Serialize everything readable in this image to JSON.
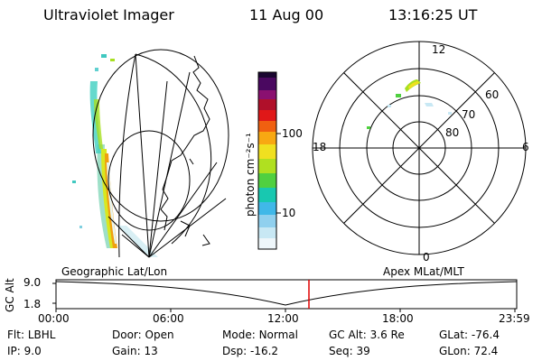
{
  "header": {
    "instrument": "Ultraviolet Imager",
    "date": "11 Aug 00",
    "time": "13:16:25 UT"
  },
  "colorbar": {
    "unit_label": "photon cm⁻²s⁻¹",
    "ticks": [
      "100",
      "10"
    ],
    "colors": [
      "#1a0630",
      "#3a0550",
      "#7a1070",
      "#a0103a",
      "#d8101e",
      "#f05a10",
      "#f8a012",
      "#f0e020",
      "#a8e020",
      "#40d040",
      "#18c8b0",
      "#40b8e8",
      "#a0d8f0",
      "#e8f4f8"
    ]
  },
  "geo_panel": {
    "label": "Geographic Lat/Lon"
  },
  "polar_panel": {
    "label": "Apex MLat/MLT",
    "mlt_labels": {
      "top": "12",
      "left": "18",
      "right": "6",
      "bottom": "0"
    },
    "lat_labels": [
      "60",
      "70",
      "80"
    ]
  },
  "timeline": {
    "axis_title": "GC Alt",
    "y_top": "9.0",
    "y_bottom": "1.8",
    "x_ticks": [
      "00:00",
      "06:00",
      "12:00",
      "18:00",
      "23:59"
    ],
    "marker_color": "#e00000",
    "marker_time": "13:16:25"
  },
  "info": {
    "filter_label": "Flt:",
    "filter": "LBHL",
    "door_label": "Door:",
    "door": "Open",
    "mode_label": "Mode:",
    "mode": "Normal",
    "gc_alt_label": "GC Alt:",
    "gc_alt": "3.6 Re",
    "glat_label": "GLat:",
    "glat": "-76.4",
    "ip_label": "IP:",
    "ip": "9.0",
    "gain_label": "Gain:",
    "gain": "13",
    "dsp_label": "Dsp:",
    "dsp": "-16.2",
    "seq_label": "Seq:",
    "seq": "39",
    "glon_label": "GLon:",
    "glon": "72.4"
  }
}
